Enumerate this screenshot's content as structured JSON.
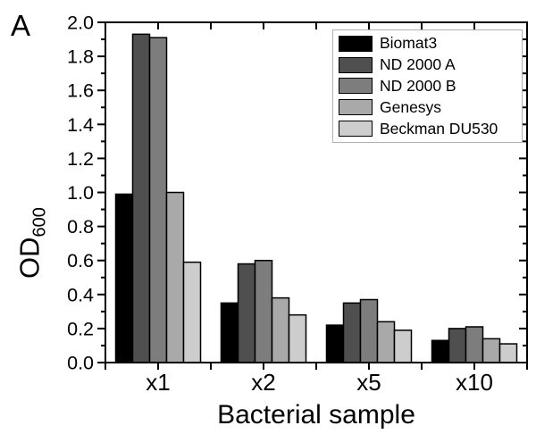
{
  "panel_label": "A",
  "chart_data": {
    "type": "bar",
    "title": "",
    "xlabel": "Bacterial sample",
    "ylabel": "OD",
    "ylabel_subscript": "600",
    "categories": [
      "x1",
      "x2",
      "x5",
      "x10"
    ],
    "series": [
      {
        "name": "Biomat3",
        "color": "#000000",
        "values": [
          0.99,
          0.35,
          0.22,
          0.13
        ]
      },
      {
        "name": "ND 2000 A",
        "color": "#4f4f4f",
        "values": [
          1.93,
          0.58,
          0.35,
          0.2
        ]
      },
      {
        "name": "ND 2000 B",
        "color": "#7d7d7d",
        "values": [
          1.91,
          0.6,
          0.37,
          0.21
        ]
      },
      {
        "name": "Genesys",
        "color": "#a9a9a9",
        "values": [
          1.0,
          0.38,
          0.24,
          0.14
        ]
      },
      {
        "name": "Beckman DU530",
        "color": "#cdcdcd",
        "values": [
          0.59,
          0.28,
          0.19,
          0.11
        ]
      }
    ],
    "ylim": [
      0.0,
      2.0
    ],
    "y_major_step": 0.2,
    "y_minor_step": 0.1,
    "y_tick_decimals": 1,
    "grid": "off",
    "legend_position": "top-right",
    "axis_color": "#000000",
    "bar_outline_color": "#000000"
  }
}
